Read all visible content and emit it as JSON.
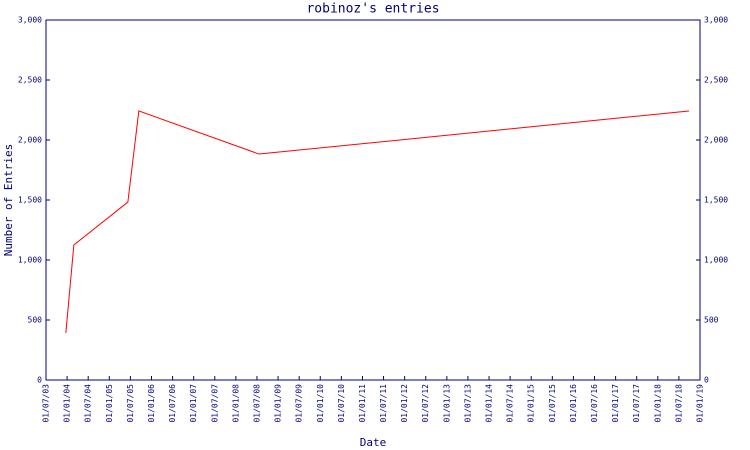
{
  "chart_data": {
    "type": "line",
    "title": "robinoz's entries",
    "xlabel": "Date",
    "ylabel": "Number of Entries",
    "x": [
      2003.97,
      2004.16,
      2005.44,
      2005.7,
      2008.55,
      2018.74
    ],
    "values": [
      392,
      1125,
      1483,
      2242,
      1883,
      2242
    ],
    "color": "#ff0000",
    "xlim": [
      2003.5,
      2019.0
    ],
    "xticks": [
      {
        "value": 2003.5,
        "label": "01/07/03"
      },
      {
        "value": 2004.0,
        "label": "01/01/04"
      },
      {
        "value": 2004.5,
        "label": "01/07/04"
      },
      {
        "value": 2005.0,
        "label": "01/01/05"
      },
      {
        "value": 2005.5,
        "label": "01/07/05"
      },
      {
        "value": 2006.0,
        "label": "01/01/06"
      },
      {
        "value": 2006.5,
        "label": "01/07/06"
      },
      {
        "value": 2007.0,
        "label": "01/01/07"
      },
      {
        "value": 2007.5,
        "label": "01/07/07"
      },
      {
        "value": 2008.0,
        "label": "01/01/08"
      },
      {
        "value": 2008.5,
        "label": "01/07/08"
      },
      {
        "value": 2009.0,
        "label": "01/01/09"
      },
      {
        "value": 2009.5,
        "label": "01/07/09"
      },
      {
        "value": 2010.0,
        "label": "01/01/10"
      },
      {
        "value": 2010.5,
        "label": "01/07/10"
      },
      {
        "value": 2011.0,
        "label": "01/01/11"
      },
      {
        "value": 2011.5,
        "label": "01/07/11"
      },
      {
        "value": 2012.0,
        "label": "01/01/12"
      },
      {
        "value": 2012.5,
        "label": "01/07/12"
      },
      {
        "value": 2013.0,
        "label": "01/01/13"
      },
      {
        "value": 2013.5,
        "label": "01/07/13"
      },
      {
        "value": 2014.0,
        "label": "01/01/14"
      },
      {
        "value": 2014.5,
        "label": "01/07/14"
      },
      {
        "value": 2015.0,
        "label": "01/01/15"
      },
      {
        "value": 2015.5,
        "label": "01/07/15"
      },
      {
        "value": 2016.0,
        "label": "01/01/16"
      },
      {
        "value": 2016.5,
        "label": "01/07/16"
      },
      {
        "value": 2017.0,
        "label": "01/01/17"
      },
      {
        "value": 2017.5,
        "label": "01/07/17"
      },
      {
        "value": 2018.0,
        "label": "01/01/18"
      },
      {
        "value": 2018.5,
        "label": "01/07/18"
      },
      {
        "value": 2019.0,
        "label": "01/01/19"
      }
    ],
    "ylim": [
      0,
      3000
    ],
    "yticks": [
      0,
      500,
      {
        "value": 1000,
        "label": "1,000"
      },
      {
        "value": 1500,
        "label": "1,500"
      },
      {
        "value": 2000,
        "label": "2,000"
      },
      {
        "value": 2500,
        "label": "2,500"
      },
      {
        "value": 3000,
        "label": "3,000"
      }
    ],
    "grid": false
  }
}
